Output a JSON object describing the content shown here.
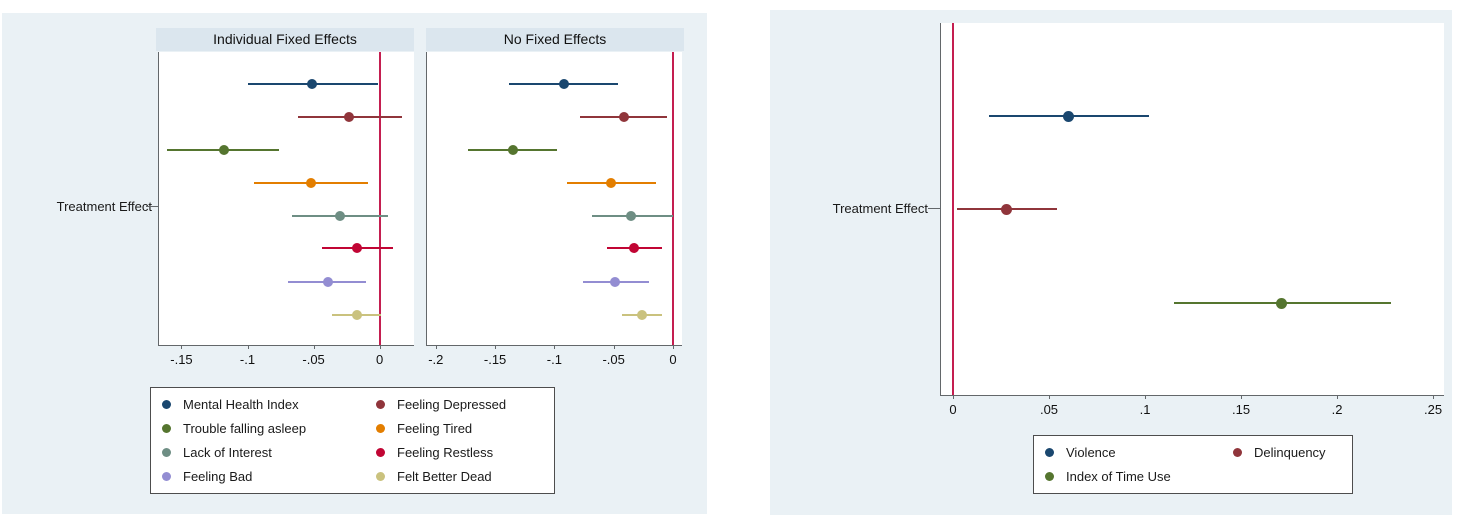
{
  "chart_data": [
    {
      "type": "dot-ci",
      "title": "",
      "ylabel": "Treatment Effect",
      "zero_line": 0,
      "zero_line_color": "#c41e50",
      "legend_position": "bottom",
      "panels": [
        {
          "header": "Individual Fixed Effects",
          "xlim": [
            -0.167,
            0.026
          ],
          "xticks": [
            {
              "v": -0.15,
              "label": "-.15"
            },
            {
              "v": -0.1,
              "label": "-.1"
            },
            {
              "v": -0.05,
              "label": "-.05"
            },
            {
              "v": 0,
              "label": "0"
            }
          ],
          "points": [
            {
              "name": "Mental Health Index",
              "color": "#1a476f",
              "est": -0.051,
              "lo": -0.1,
              "hi": -0.001
            },
            {
              "name": "Feeling Depressed",
              "color": "#90353b",
              "est": -0.023,
              "lo": -0.062,
              "hi": 0.017
            },
            {
              "name": "Trouble falling asleep",
              "color": "#55752f",
              "est": -0.118,
              "lo": -0.161,
              "hi": -0.076
            },
            {
              "name": "Feeling Tired",
              "color": "#e37e00",
              "est": -0.052,
              "lo": -0.095,
              "hi": -0.009
            },
            {
              "name": "Lack of Interest",
              "color": "#6e8e84",
              "est": -0.03,
              "lo": -0.066,
              "hi": 0.006
            },
            {
              "name": "Feeling Restless",
              "color": "#c10534",
              "est": -0.017,
              "lo": -0.044,
              "hi": 0.01
            },
            {
              "name": "Feeling Bad",
              "color": "#938dd2",
              "est": -0.039,
              "lo": -0.069,
              "hi": -0.01
            },
            {
              "name": "Felt Better Dead",
              "color": "#cac27e",
              "est": -0.017,
              "lo": -0.036,
              "hi": 0.001
            }
          ]
        },
        {
          "header": "No Fixed Effects",
          "xlim": [
            -0.2074,
            0.0076
          ],
          "xticks": [
            {
              "v": -0.2,
              "label": "-.2"
            },
            {
              "v": -0.15,
              "label": "-.15"
            },
            {
              "v": -0.1,
              "label": "-.1"
            },
            {
              "v": -0.05,
              "label": "-.05"
            },
            {
              "v": 0,
              "label": "0"
            }
          ],
          "points": [
            {
              "name": "Mental Health Index",
              "color": "#1a476f",
              "est": -0.092,
              "lo": -0.138,
              "hi": -0.046
            },
            {
              "name": "Feeling Depressed",
              "color": "#90353b",
              "est": -0.041,
              "lo": -0.078,
              "hi": -0.005
            },
            {
              "name": "Trouble falling asleep",
              "color": "#55752f",
              "est": -0.135,
              "lo": -0.173,
              "hi": -0.098
            },
            {
              "name": "Feeling Tired",
              "color": "#e37e00",
              "est": -0.052,
              "lo": -0.089,
              "hi": -0.014
            },
            {
              "name": "Lack of Interest",
              "color": "#6e8e84",
              "est": -0.035,
              "lo": -0.068,
              "hi": 0.0
            },
            {
              "name": "Feeling Restless",
              "color": "#c10534",
              "est": -0.033,
              "lo": -0.056,
              "hi": -0.009
            },
            {
              "name": "Feeling Bad",
              "color": "#938dd2",
              "est": -0.049,
              "lo": -0.076,
              "hi": -0.02
            },
            {
              "name": "Felt Better Dead",
              "color": "#cac27e",
              "est": -0.026,
              "lo": -0.043,
              "hi": -0.009
            }
          ]
        }
      ],
      "legend": [
        {
          "label": "Mental Health Index",
          "color": "#1a476f"
        },
        {
          "label": "Feeling Depressed",
          "color": "#90353b"
        },
        {
          "label": "Trouble falling asleep",
          "color": "#55752f"
        },
        {
          "label": "Feeling Tired",
          "color": "#e37e00"
        },
        {
          "label": "Lack of Interest",
          "color": "#6e8e84"
        },
        {
          "label": "Feeling Restless",
          "color": "#c10534"
        },
        {
          "label": "Feeling Bad",
          "color": "#938dd2"
        },
        {
          "label": "Felt Better Dead",
          "color": "#cac27e"
        }
      ]
    },
    {
      "type": "dot-ci",
      "title": "",
      "ylabel": "Treatment Effect",
      "zero_line": 0,
      "zero_line_color": "#c41e50",
      "legend_position": "bottom",
      "panels": [
        {
          "header": "",
          "xlim": [
            -0.00625,
            0.2557
          ],
          "xticks": [
            {
              "v": 0,
              "label": "0"
            },
            {
              "v": 0.05,
              "label": ".05"
            },
            {
              "v": 0.1,
              "label": ".1"
            },
            {
              "v": 0.15,
              "label": ".15"
            },
            {
              "v": 0.2,
              "label": ".2"
            },
            {
              "v": 0.25,
              "label": ".25"
            }
          ],
          "points": [
            {
              "name": "Violence",
              "color": "#1a476f",
              "est": 0.06,
              "lo": 0.019,
              "hi": 0.102
            },
            {
              "name": "Delinquency",
              "color": "#90353b",
              "est": 0.028,
              "lo": 0.002,
              "hi": 0.054
            },
            {
              "name": "Index of Time Use",
              "color": "#55752f",
              "est": 0.171,
              "lo": 0.115,
              "hi": 0.228
            }
          ]
        }
      ],
      "legend": [
        {
          "label": "Violence",
          "color": "#1a476f"
        },
        {
          "label": "Delinquency",
          "color": "#90353b"
        },
        {
          "label": "Index of Time Use",
          "color": "#55752f"
        }
      ]
    }
  ]
}
